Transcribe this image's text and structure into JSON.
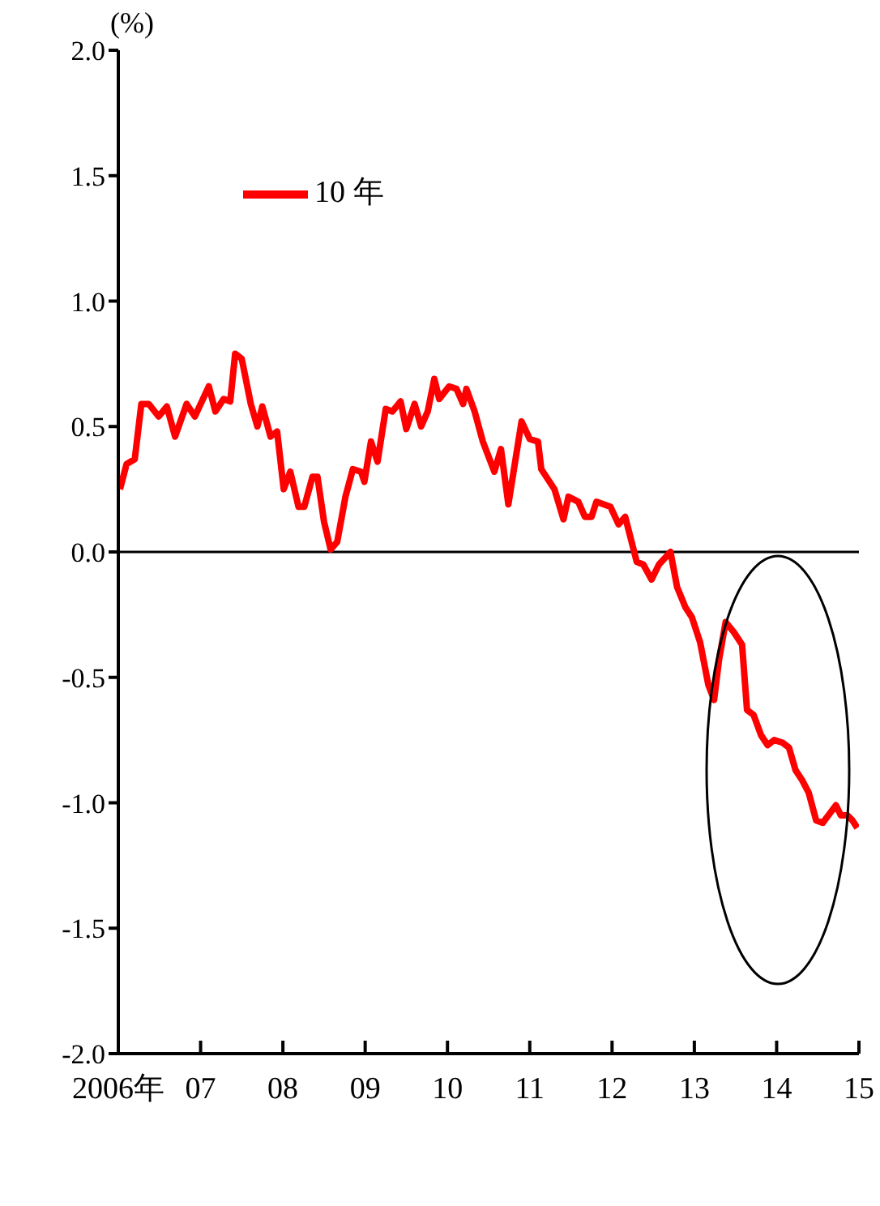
{
  "chart_data": {
    "type": "line",
    "ylabel": "(%)",
    "x": [
      2006.02,
      2006.1,
      2006.2,
      2006.28,
      2006.37,
      2006.49,
      2006.59,
      2006.69,
      2006.83,
      2006.93,
      2007.1,
      2007.18,
      2007.28,
      2007.36,
      2007.42,
      2007.5,
      2007.61,
      2007.69,
      2007.75,
      2007.85,
      2007.93,
      2008.01,
      2008.09,
      2008.19,
      2008.26,
      2008.36,
      2008.42,
      2008.5,
      2008.58,
      2008.66,
      2008.76,
      2008.85,
      2008.95,
      2008.99,
      2009.07,
      2009.15,
      2009.25,
      2009.33,
      2009.43,
      2009.5,
      2009.6,
      2009.68,
      2009.76,
      2009.84,
      2009.9,
      2010.02,
      2010.11,
      2010.19,
      2010.23,
      2010.33,
      2010.43,
      2010.57,
      2010.65,
      2010.74,
      2010.9,
      2011.0,
      2011.1,
      2011.14,
      2011.3,
      2011.41,
      2011.47,
      2011.59,
      2011.67,
      2011.75,
      2011.81,
      2011.98,
      2012.08,
      2012.16,
      2012.3,
      2012.38,
      2012.48,
      2012.57,
      2012.71,
      2012.79,
      2012.89,
      2012.97,
      2013.07,
      2013.17,
      2013.24,
      2013.3,
      2013.38,
      2013.48,
      2013.58,
      2013.64,
      2013.72,
      2013.81,
      2013.89,
      2013.97,
      2014.07,
      2014.15,
      2014.23,
      2014.31,
      2014.39,
      2014.48,
      2014.56,
      2014.72,
      2014.78,
      2014.86,
      2014.92,
      2014.98
    ],
    "series": [
      {
        "name": "10 年",
        "color": "#ff0000",
        "values": [
          0.25,
          0.35,
          0.37,
          0.59,
          0.59,
          0.54,
          0.58,
          0.46,
          0.59,
          0.54,
          0.66,
          0.56,
          0.61,
          0.6,
          0.79,
          0.77,
          0.59,
          0.5,
          0.58,
          0.46,
          0.48,
          0.25,
          0.32,
          0.18,
          0.18,
          0.3,
          0.3,
          0.12,
          0.01,
          0.04,
          0.22,
          0.33,
          0.32,
          0.28,
          0.44,
          0.36,
          0.57,
          0.56,
          0.6,
          0.49,
          0.59,
          0.5,
          0.56,
          0.69,
          0.61,
          0.66,
          0.65,
          0.59,
          0.65,
          0.56,
          0.44,
          0.32,
          0.41,
          0.19,
          0.52,
          0.45,
          0.44,
          0.33,
          0.25,
          0.13,
          0.22,
          0.2,
          0.14,
          0.14,
          0.2,
          0.18,
          0.11,
          0.14,
          -0.04,
          -0.05,
          -0.11,
          -0.05,
          0.0,
          -0.14,
          -0.22,
          -0.26,
          -0.36,
          -0.53,
          -0.59,
          -0.43,
          -0.28,
          -0.32,
          -0.37,
          -0.63,
          -0.65,
          -0.73,
          -0.77,
          -0.75,
          -0.76,
          -0.78,
          -0.87,
          -0.91,
          -0.96,
          -1.07,
          -1.08,
          -1.01,
          -1.05,
          -1.05,
          -1.07,
          -1.1
        ]
      }
    ],
    "xlim": [
      2006,
      2015
    ],
    "xticks": [
      {
        "value": 2006,
        "label": "2006年"
      },
      {
        "value": 2007,
        "label": "07"
      },
      {
        "value": 2008,
        "label": "08"
      },
      {
        "value": 2009,
        "label": "09"
      },
      {
        "value": 2010,
        "label": "10"
      },
      {
        "value": 2011,
        "label": "11"
      },
      {
        "value": 2012,
        "label": "12"
      },
      {
        "value": 2013,
        "label": "13"
      },
      {
        "value": 2014,
        "label": "14"
      },
      {
        "value": 2015,
        "label": "15"
      }
    ],
    "ylim": [
      -2,
      2
    ],
    "yticks": [
      {
        "value": -2,
        "label": "-2.0"
      },
      {
        "value": -1.5,
        "label": "-1.5"
      },
      {
        "value": -1,
        "label": "-1.0"
      },
      {
        "value": -0.5,
        "label": "-0.5"
      },
      {
        "value": 0,
        "label": "0.0"
      },
      {
        "value": 0.5,
        "label": "0.5"
      },
      {
        "value": 1,
        "label": "1.0"
      },
      {
        "value": 1.5,
        "label": "1.5"
      },
      {
        "value": 2,
        "label": "2.0"
      }
    ],
    "ref_lines": [
      {
        "axis": "y",
        "value": 0,
        "color": "#000000"
      }
    ],
    "grid": false,
    "legend": "top left",
    "marker": "none",
    "line_style": "solid"
  }
}
